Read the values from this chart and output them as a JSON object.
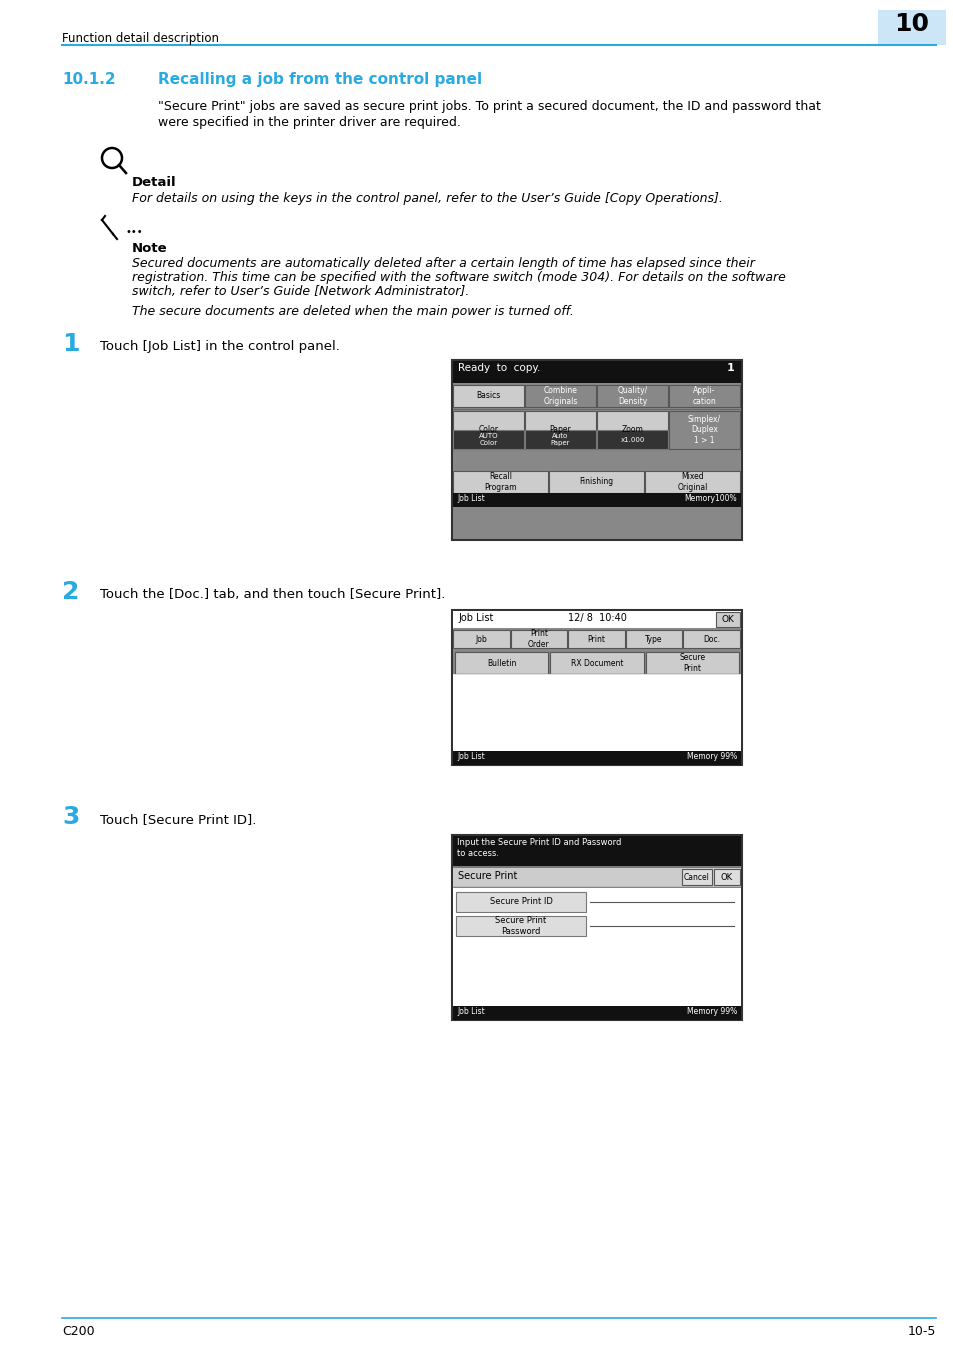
{
  "page_bg": "#ffffff",
  "header_text": "Function detail description",
  "header_number": "10",
  "header_number_bg": "#cce6f7",
  "header_line_color": "#29abe2",
  "footer_left": "C200",
  "footer_right": "10-5",
  "footer_line_color": "#29abe2",
  "section_number": "10.1.2",
  "section_title": "Recalling a job from the control panel",
  "section_color": "#29abe2",
  "para1_line1": "\"Secure Print\" jobs are saved as secure print jobs. To print a secured document, the ID and password that",
  "para1_line2": "were specified in the printer driver are required.",
  "detail_label": "Detail",
  "detail_text": "For details on using the keys in the control panel, refer to the User’s Guide [Copy Operations].",
  "note_label": "Note",
  "note_text1_line1": "Secured documents are automatically deleted after a certain length of time has elapsed since their",
  "note_text1_line2": "registration. This time can be specified with the software switch (mode 304). For details on the software",
  "note_text1_line3": "switch, refer to User’s Guide [Network Administrator].",
  "note_text2": "The secure documents are deleted when the main power is turned off.",
  "step1_num": "1",
  "step1_text": "Touch [Job List] in the control panel.",
  "step2_num": "2",
  "step2_text": "Touch the [Doc.] tab, and then touch [Secure Print].",
  "step3_num": "3",
  "step3_text": "Touch [Secure Print ID].",
  "screen_bg": "#000000",
  "screen_btn_bg": "#cccccc",
  "screen_btn_dark": "#444444",
  "screen_text": "#000000",
  "screen_white_text": "#ffffff",
  "accent_color": "#29abe2"
}
